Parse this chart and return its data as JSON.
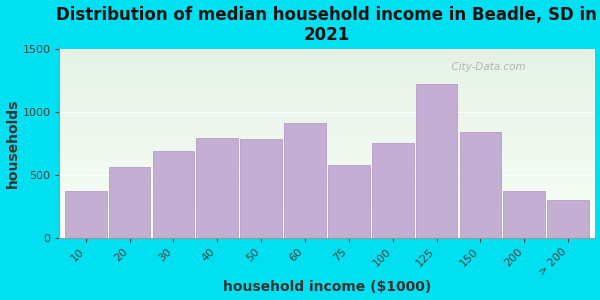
{
  "title": "Distribution of median household income in Beadle, SD in\n2021",
  "xlabel": "household income ($1000)",
  "ylabel": "households",
  "categories": [
    "10",
    "20",
    "30",
    "40",
    "50",
    "60",
    "75",
    "100",
    "125",
    "150",
    "200",
    "> 200"
  ],
  "bar_heights": [
    370,
    560,
    685,
    790,
    785,
    910,
    580,
    755,
    1220,
    840,
    370,
    295
  ],
  "bar_color": "#c4aed4",
  "bar_edge_color": "#b090c0",
  "ylim": [
    0,
    1500
  ],
  "yticks": [
    0,
    500,
    1000,
    1500
  ],
  "bg_outer": "#00e0f0",
  "bg_plot_color_top": "#e6f2e6",
  "bg_plot_color_bottom": "#f8fff8",
  "title_fontsize": 12,
  "axis_label_fontsize": 10,
  "tick_fontsize": 8,
  "watermark_text": "  City-Data.com"
}
